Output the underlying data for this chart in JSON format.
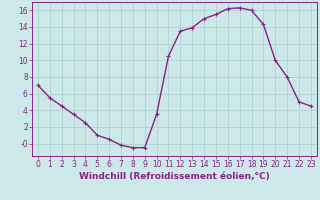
{
  "x": [
    0,
    1,
    2,
    3,
    4,
    5,
    6,
    7,
    8,
    9,
    10,
    11,
    12,
    13,
    14,
    15,
    16,
    17,
    18,
    19,
    20,
    21,
    22,
    23
  ],
  "y": [
    7.0,
    5.5,
    4.5,
    3.5,
    2.5,
    1.0,
    0.5,
    -0.2,
    -0.5,
    -0.5,
    3.5,
    10.5,
    13.5,
    13.9,
    15.0,
    15.5,
    16.2,
    16.3,
    16.0,
    14.3,
    10.0,
    8.0,
    5.0,
    4.5
  ],
  "line_color": "#882288",
  "marker": "+",
  "marker_size": 3,
  "marker_lw": 0.8,
  "bg_color": "#cce8e8",
  "grid_color": "#aacece",
  "xlabel": "Windchill (Refroidissement éolien,°C)",
  "xlim": [
    -0.5,
    23.5
  ],
  "ylim": [
    -1.5,
    17.0
  ],
  "yticks": [
    0,
    2,
    4,
    6,
    8,
    10,
    12,
    14,
    16
  ],
  "ytick_labels": [
    "-0",
    "2",
    "4",
    "6",
    "8",
    "10",
    "12",
    "14",
    "16"
  ],
  "xticks": [
    0,
    1,
    2,
    3,
    4,
    5,
    6,
    7,
    8,
    9,
    10,
    11,
    12,
    13,
    14,
    15,
    16,
    17,
    18,
    19,
    20,
    21,
    22,
    23
  ],
  "tick_color": "#882288",
  "spine_color": "#882288",
  "tick_fontsize": 5.5,
  "xlabel_fontsize": 6.5,
  "line_width": 1.0
}
